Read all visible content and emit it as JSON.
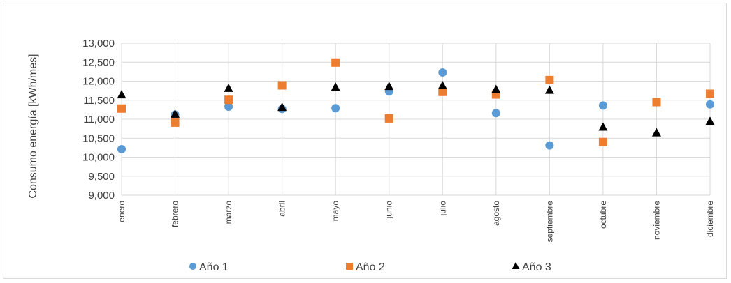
{
  "chart_data": {
    "type": "scatter",
    "title": "",
    "xlabel": "",
    "ylabel": "Consumo energía [kWh/mes]",
    "categories": [
      "enero",
      "febrero",
      "marzo",
      "abril",
      "mayo",
      "junio",
      "julio",
      "agosto",
      "septiembre",
      "octubre",
      "noviembre",
      "diciembre"
    ],
    "ylim": [
      9000,
      13000
    ],
    "yticks": [
      9000,
      9500,
      10000,
      10500,
      11000,
      11500,
      12000,
      12500,
      13000
    ],
    "ytick_labels": [
      "9,000",
      "9,500",
      "10,000",
      "10,500",
      "11,000",
      "11,500",
      "12,000",
      "12,500",
      "13,000"
    ],
    "grid": true,
    "legend_position": "bottom",
    "series": [
      {
        "name": "Año 1",
        "marker": "circle",
        "color": "#5b9bd5",
        "values": [
          10210,
          11120,
          11330,
          11270,
          11290,
          11730,
          12230,
          11160,
          10310,
          11360,
          11450,
          11390
        ]
      },
      {
        "name": "Año 2",
        "marker": "square",
        "color": "#ed7d31",
        "values": [
          11280,
          10910,
          11510,
          11890,
          12490,
          11020,
          11720,
          11650,
          12030,
          10400,
          11450,
          11670
        ]
      },
      {
        "name": "Año 3",
        "marker": "triangle",
        "color": "#000000",
        "values": [
          11640,
          11130,
          11810,
          11310,
          11840,
          11860,
          11880,
          11780,
          11760,
          10790,
          10640,
          10940
        ]
      }
    ]
  }
}
